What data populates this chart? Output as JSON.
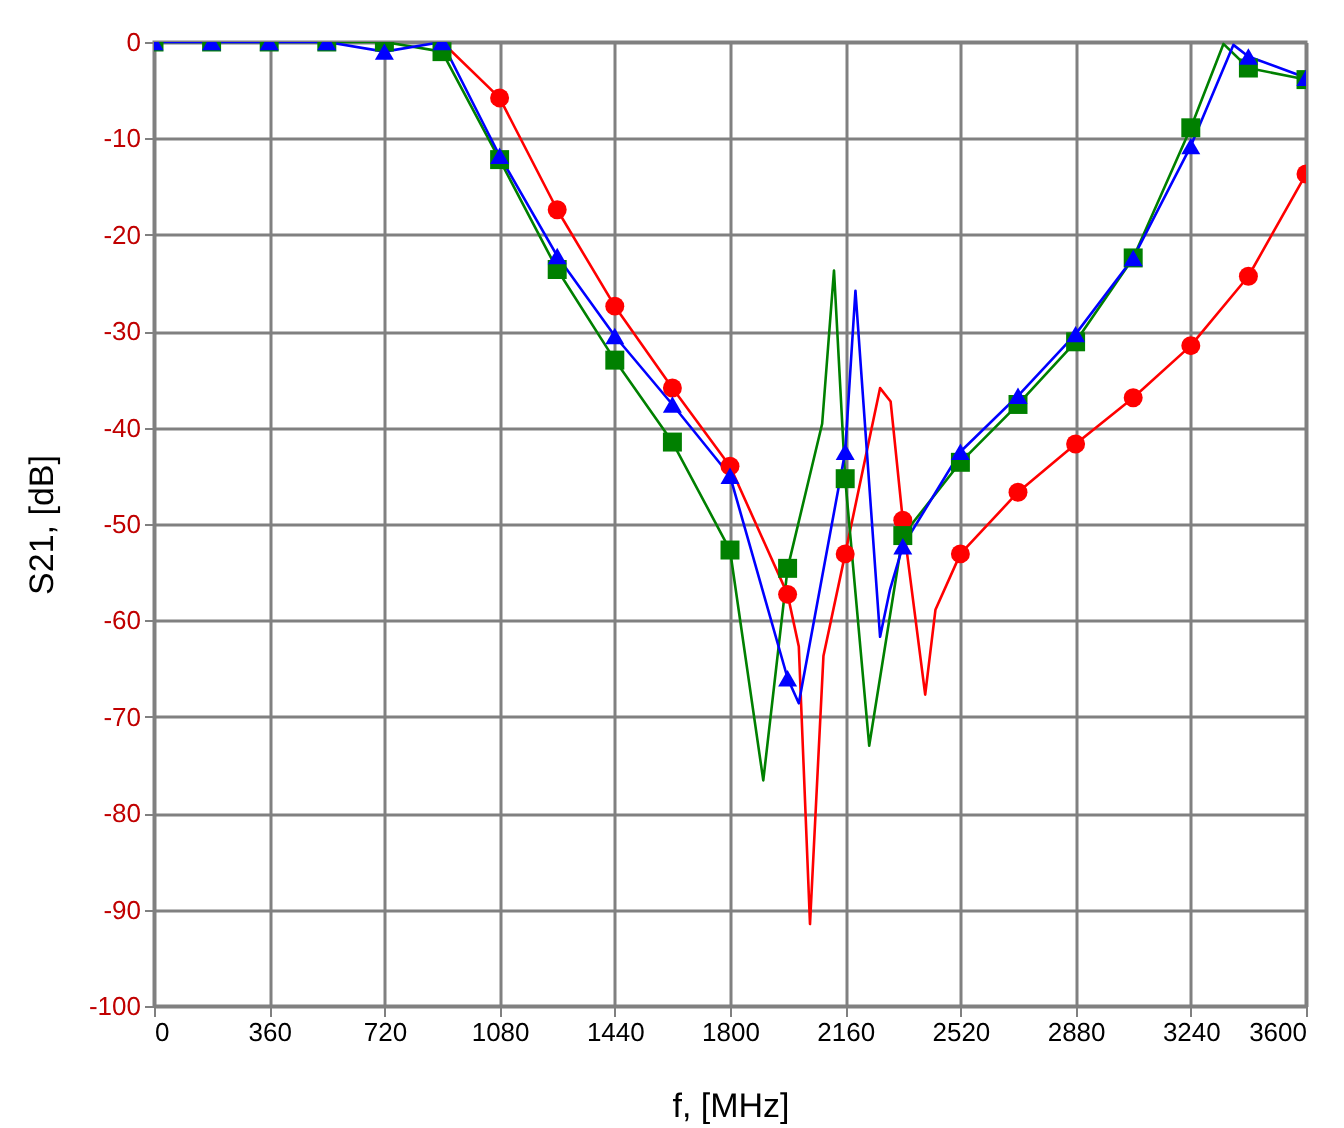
{
  "chart_data": {
    "type": "line",
    "xlabel": "f, [MHz]",
    "ylabel": "S21, [dB]",
    "xlim": [
      0,
      3600
    ],
    "xticks": [
      0,
      360,
      720,
      1080,
      1440,
      1800,
      2160,
      2520,
      2880,
      3240,
      3600
    ],
    "ylim": [
      -100,
      0
    ],
    "yticks": [
      -100,
      -90,
      -80,
      -70,
      -60,
      -50,
      -40,
      -30,
      -20,
      -10,
      0
    ],
    "grid": true,
    "series": [
      {
        "marker": "none",
        "color": "#ff0000",
        "x": [
          900,
          1080,
          1260,
          1440,
          1620,
          1800,
          1980,
          2015,
          2050,
          2092,
          2160,
          2269,
          2302,
          2340,
          2410,
          2442,
          2520,
          2700,
          2880,
          3060,
          3240,
          3420,
          3600
        ],
        "values": [
          0,
          -5.8,
          -17.4,
          -27.4,
          -35.9,
          -44,
          -57.3,
          -62.7,
          -91.5,
          -63.7,
          -53.1,
          -35.9,
          -37.3,
          -49.6,
          -67.7,
          -58.9,
          -53.1,
          -46.7,
          -41.7,
          -36.9,
          -31.5,
          -24.3,
          -13.7
        ]
      },
      {
        "marker": "none",
        "color": "#008000",
        "x": [
          0,
          180,
          360,
          540,
          720,
          900,
          1080,
          1260,
          1440,
          1620,
          1800,
          1904,
          1980,
          2088,
          2125,
          2160,
          2235,
          2340,
          2520,
          2700,
          2880,
          3060,
          3240,
          3342,
          3420,
          3600
        ],
        "values": [
          0,
          0,
          0,
          0,
          0,
          -1,
          -12.2,
          -23.6,
          -33,
          -41.5,
          -52.7,
          -76.6,
          -54.6,
          -39.6,
          -23.7,
          -45.3,
          -73,
          -51.2,
          -43.6,
          -37.6,
          -31.1,
          -22.4,
          -8.9,
          -0.2,
          -2.7,
          -3.9
        ]
      },
      {
        "marker": "none",
        "color": "#0000ff",
        "x": [
          0,
          180,
          360,
          540,
          720,
          900,
          1080,
          1260,
          1440,
          1620,
          1800,
          1980,
          2015,
          2160,
          2192,
          2269,
          2300,
          2340,
          2520,
          2700,
          2880,
          3060,
          3240,
          3373,
          3420,
          3600
        ],
        "values": [
          0,
          0,
          0,
          0,
          -1,
          0,
          -11.8,
          -22.2,
          -30.5,
          -37.6,
          -45,
          -66,
          -68.6,
          -42.5,
          -25.8,
          -61.7,
          -56.8,
          -52.3,
          -42.5,
          -36.7,
          -30.3,
          -22.4,
          -10.8,
          -0.3,
          -1.5,
          -3.7
        ]
      },
      {
        "type": "scatter",
        "marker": "circle",
        "color": "#ff0000",
        "x": [
          1080,
          1260,
          1440,
          1620,
          1800,
          1980,
          2160,
          2340,
          2520,
          2700,
          2880,
          3060,
          3240,
          3420,
          3600
        ],
        "values": [
          -5.8,
          -17.4,
          -27.4,
          -35.9,
          -44,
          -57.3,
          -53.1,
          -49.6,
          -53.1,
          -46.7,
          -41.7,
          -36.9,
          -31.5,
          -24.3,
          -13.7
        ]
      },
      {
        "type": "scatter",
        "marker": "square",
        "color": "#008000",
        "x": [
          0,
          180,
          360,
          540,
          720,
          900,
          1080,
          1260,
          1440,
          1620,
          1800,
          1980,
          2160,
          2340,
          2520,
          2700,
          2880,
          3060,
          3240,
          3420,
          3600
        ],
        "values": [
          0,
          0,
          0,
          0,
          0,
          -1,
          -12.2,
          -23.6,
          -33,
          -41.5,
          -52.7,
          -54.6,
          -45.3,
          -51.2,
          -43.6,
          -37.6,
          -31.1,
          -22.4,
          -8.9,
          -2.7,
          -3.9
        ]
      },
      {
        "type": "scatter",
        "marker": "triangle",
        "color": "#0000ff",
        "x": [
          0,
          180,
          360,
          540,
          720,
          900,
          1080,
          1260,
          1440,
          1620,
          1800,
          1980,
          2160,
          2340,
          2520,
          2700,
          2880,
          3060,
          3240,
          3420,
          3600
        ],
        "values": [
          0,
          0,
          0,
          0,
          -1,
          0,
          -11.8,
          -22.2,
          -30.5,
          -37.6,
          -45,
          -66,
          -42.5,
          -52.3,
          -42.5,
          -36.7,
          -30.3,
          -22.4,
          -10.8,
          -1.5,
          -3.7
        ]
      }
    ]
  }
}
